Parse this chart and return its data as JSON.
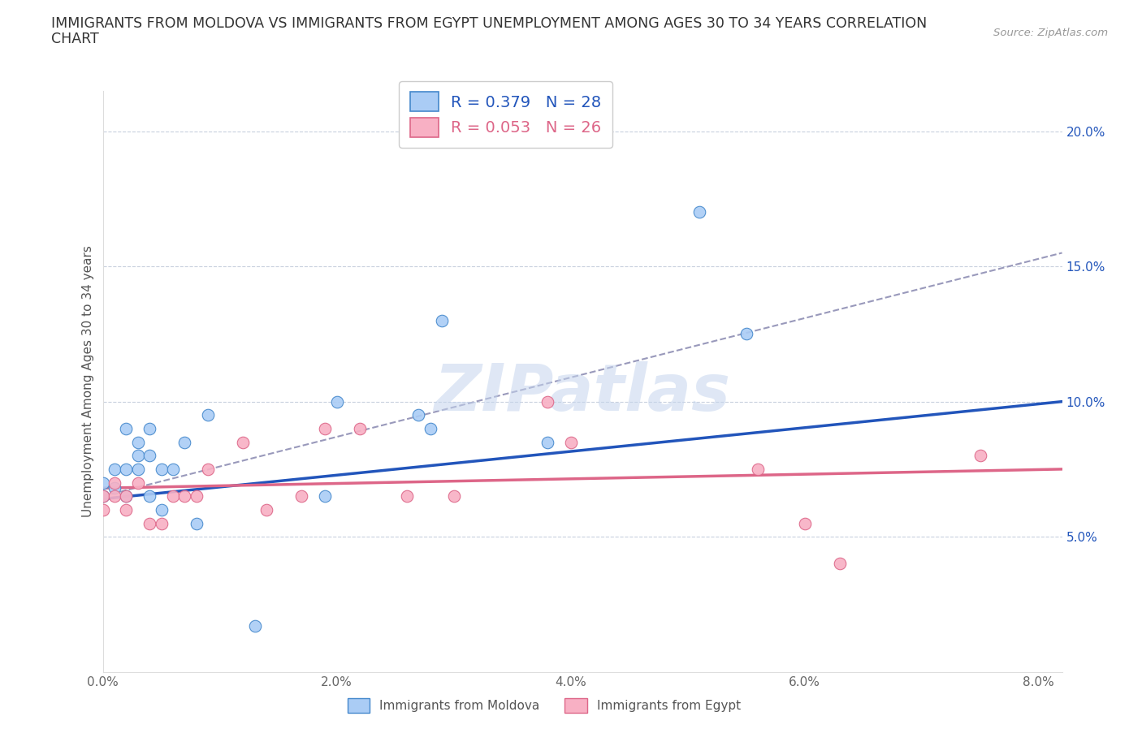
{
  "title_line1": "IMMIGRANTS FROM MOLDOVA VS IMMIGRANTS FROM EGYPT UNEMPLOYMENT AMONG AGES 30 TO 34 YEARS CORRELATION",
  "title_line2": "CHART",
  "source": "Source: ZipAtlas.com",
  "ylabel": "Unemployment Among Ages 30 to 34 years",
  "xlim": [
    0.0,
    0.082
  ],
  "ylim": [
    0.0,
    0.215
  ],
  "xticks": [
    0.0,
    0.02,
    0.04,
    0.06,
    0.08
  ],
  "xticklabels": [
    "0.0%",
    "2.0%",
    "4.0%",
    "6.0%",
    "8.0%"
  ],
  "yticks": [
    0.0,
    0.05,
    0.1,
    0.15,
    0.2
  ],
  "yticklabels": [
    "",
    "5.0%",
    "10.0%",
    "15.0%",
    "20.0%"
  ],
  "moldova_color": "#aaccf5",
  "moldova_edge": "#4488cc",
  "egypt_color": "#f8b0c4",
  "egypt_edge": "#dd6688",
  "moldova_line_color": "#2255bb",
  "egypt_line_color": "#dd6688",
  "dash_line_color": "#9999bb",
  "moldova_R": 0.379,
  "moldova_N": 28,
  "egypt_R": 0.053,
  "egypt_N": 26,
  "moldova_x": [
    0.0,
    0.0,
    0.001,
    0.001,
    0.002,
    0.002,
    0.002,
    0.003,
    0.003,
    0.003,
    0.004,
    0.004,
    0.004,
    0.005,
    0.005,
    0.006,
    0.007,
    0.008,
    0.009,
    0.013,
    0.019,
    0.02,
    0.027,
    0.028,
    0.029,
    0.038,
    0.051,
    0.055
  ],
  "moldova_y": [
    0.065,
    0.07,
    0.068,
    0.075,
    0.065,
    0.075,
    0.09,
    0.075,
    0.08,
    0.085,
    0.065,
    0.09,
    0.08,
    0.06,
    0.075,
    0.075,
    0.085,
    0.055,
    0.095,
    0.017,
    0.065,
    0.1,
    0.095,
    0.09,
    0.13,
    0.085,
    0.17,
    0.125
  ],
  "egypt_x": [
    0.0,
    0.0,
    0.001,
    0.001,
    0.002,
    0.002,
    0.003,
    0.004,
    0.005,
    0.006,
    0.007,
    0.008,
    0.009,
    0.012,
    0.014,
    0.017,
    0.019,
    0.022,
    0.026,
    0.03,
    0.038,
    0.04,
    0.056,
    0.06,
    0.063,
    0.075
  ],
  "egypt_y": [
    0.06,
    0.065,
    0.065,
    0.07,
    0.065,
    0.06,
    0.07,
    0.055,
    0.055,
    0.065,
    0.065,
    0.065,
    0.075,
    0.085,
    0.06,
    0.065,
    0.09,
    0.09,
    0.065,
    0.065,
    0.1,
    0.085,
    0.075,
    0.055,
    0.04,
    0.08
  ],
  "dash_line_x": [
    0.0,
    0.082
  ],
  "dash_line_y": [
    0.065,
    0.155
  ],
  "moldova_line_x": [
    0.0,
    0.082
  ],
  "moldova_line_y": [
    0.064,
    0.1
  ],
  "egypt_line_x": [
    0.0,
    0.082
  ],
  "egypt_line_y": [
    0.068,
    0.075
  ],
  "watermark": "ZIPatlas",
  "marker_size": 110,
  "title_fontsize": 12.5,
  "axis_label_fontsize": 11,
  "tick_fontsize": 11,
  "legend_fontsize": 14
}
